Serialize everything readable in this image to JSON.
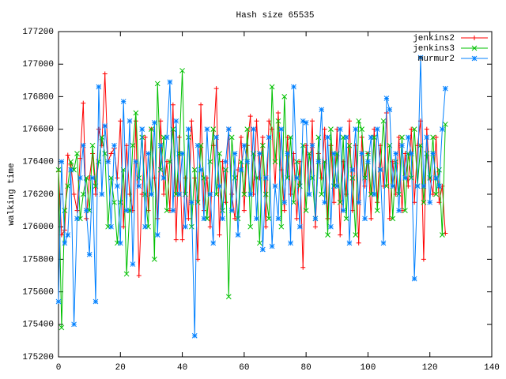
{
  "chart_data": {
    "type": "line",
    "title": "Hash size 65535",
    "y_label": "walking time",
    "x": [
      0,
      1,
      2,
      3,
      4,
      5,
      6,
      7,
      8,
      9,
      10,
      11,
      12,
      13,
      14,
      15,
      16,
      17,
      18,
      19,
      20,
      21,
      22,
      23,
      24,
      25,
      26,
      27,
      28,
      29,
      30,
      31,
      32,
      33,
      34,
      35,
      36,
      37,
      38,
      39,
      40,
      41,
      42,
      43,
      44,
      45,
      46,
      47,
      48,
      49,
      50,
      51,
      52,
      53,
      54,
      55,
      56,
      57,
      58,
      59,
      60,
      61,
      62,
      63,
      64,
      65,
      66,
      67,
      68,
      69,
      70,
      71,
      72,
      73,
      74,
      75,
      76,
      77,
      78,
      79,
      80,
      81,
      82,
      83,
      84,
      85,
      86,
      87,
      88,
      89,
      90,
      91,
      92,
      93,
      94,
      95,
      96,
      97,
      98,
      99,
      100,
      101,
      102,
      103,
      104,
      105,
      106,
      107,
      108,
      109,
      110,
      111,
      112,
      113,
      114,
      115,
      116,
      117,
      118,
      119,
      120,
      121,
      122,
      123,
      124,
      125
    ],
    "series": [
      {
        "name": "jenkins2",
        "color": "#ff0000",
        "marker": "plus",
        "values": [
          176340,
          175950,
          175980,
          176440,
          176380,
          176200,
          176100,
          176420,
          176760,
          176050,
          176300,
          176450,
          176200,
          176600,
          176500,
          176940,
          176400,
          176450,
          176480,
          176300,
          176650,
          176000,
          176500,
          176200,
          176100,
          176650,
          175700,
          176200,
          176550,
          176100,
          176600,
          176300,
          176050,
          176650,
          176200,
          176400,
          176100,
          176750,
          175920,
          176550,
          175920,
          176300,
          176050,
          176650,
          176300,
          175800,
          176750,
          176100,
          176300,
          176000,
          176500,
          176850,
          175950,
          176400,
          176150,
          176600,
          176200,
          176050,
          176350,
          176550,
          176100,
          176500,
          176680,
          176200,
          176650,
          176300,
          176550,
          176000,
          176650,
          176600,
          176250,
          176700,
          176350,
          176100,
          176550,
          176200,
          176450,
          176050,
          176400,
          175750,
          176500,
          176200,
          176650,
          176000,
          176450,
          176300,
          176600,
          176050,
          176500,
          176150,
          176600,
          175950,
          176400,
          176200,
          176650,
          176100,
          176500,
          175900,
          176550,
          176250,
          176450,
          176050,
          176600,
          176150,
          176500,
          176250,
          176700,
          176050,
          176400,
          176200,
          176550,
          176100,
          176450,
          176250,
          176600,
          176150,
          176500,
          176650,
          175800,
          176600,
          176300,
          176200,
          176550,
          176150,
          176250,
          175960
        ]
      },
      {
        "name": "jenkins3",
        "color": "#00c000",
        "marker": "cross",
        "values": [
          176350,
          175380,
          176100,
          176250,
          176400,
          176350,
          176450,
          176050,
          176200,
          176300,
          176100,
          176500,
          176250,
          176400,
          176550,
          176450,
          176000,
          176300,
          176150,
          175900,
          176150,
          176350,
          175710,
          176100,
          176500,
          176700,
          176300,
          176550,
          176200,
          176000,
          176600,
          175800,
          176880,
          176350,
          176550,
          176100,
          176400,
          176600,
          176200,
          176450,
          176960,
          176200,
          176550,
          176000,
          176350,
          176150,
          176500,
          176300,
          176050,
          176400,
          176600,
          176200,
          176450,
          176100,
          176350,
          175570,
          176550,
          176300,
          176050,
          176400,
          176200,
          176600,
          176000,
          176450,
          176300,
          175900,
          176500,
          176200,
          176050,
          176860,
          176400,
          176650,
          176000,
          176800,
          176300,
          176550,
          176150,
          176400,
          176250,
          176500,
          176100,
          176450,
          176300,
          176050,
          176550,
          176200,
          176400,
          175950,
          176600,
          176250,
          176450,
          176150,
          176550,
          176050,
          176500,
          176300,
          175950,
          176650,
          176600,
          176300,
          176450,
          176200,
          176550,
          176100,
          176350,
          176650,
          176250,
          176500,
          176050,
          176400,
          176200,
          176550,
          176100,
          176450,
          176300,
          176600,
          176250,
          176500,
          176150,
          176450,
          176300,
          176550,
          176200,
          176350,
          175950,
          176630
        ]
      },
      {
        "name": "murmur2",
        "color": "#0080ff",
        "marker": "star",
        "values": [
          175540,
          176400,
          175900,
          175950,
          176350,
          175400,
          176050,
          176300,
          176500,
          176100,
          175830,
          176300,
          175540,
          176860,
          176200,
          176620,
          176400,
          176000,
          176500,
          176250,
          175900,
          176770,
          176100,
          176650,
          175770,
          176400,
          176250,
          176600,
          176000,
          176450,
          176200,
          176640,
          175950,
          176500,
          176300,
          176550,
          176890,
          176100,
          176650,
          176200,
          176450,
          176000,
          176600,
          176150,
          175330,
          176500,
          176350,
          176050,
          176600,
          176200,
          175900,
          176550,
          176250,
          176050,
          176400,
          176600,
          176100,
          176450,
          175950,
          176350,
          176500,
          176400,
          176200,
          176600,
          176050,
          176450,
          175860,
          176300,
          176550,
          175880,
          176250,
          176050,
          176600,
          176150,
          176450,
          175900,
          176860,
          176300,
          176000,
          176650,
          176640,
          176200,
          176500,
          176050,
          176400,
          176720,
          176150,
          176550,
          176000,
          176450,
          176250,
          176600,
          176100,
          176550,
          175900,
          176350,
          176600,
          176150,
          176450,
          176050,
          176400,
          176550,
          176200,
          176600,
          176350,
          175900,
          176790,
          176720,
          176250,
          176450,
          176100,
          176500,
          176300,
          176550,
          176450,
          175680,
          176250,
          177040,
          176250,
          176550,
          176150,
          176450,
          176300,
          176250,
          176600,
          176850
        ]
      }
    ],
    "xlim": [
      0,
      140
    ],
    "xticks": [
      0,
      20,
      40,
      60,
      80,
      100,
      120,
      140
    ],
    "ylim": [
      175200,
      177200
    ],
    "yticks": [
      175200,
      175400,
      175600,
      175800,
      176000,
      176200,
      176400,
      176600,
      176800,
      177000,
      177200
    ],
    "grid": false,
    "legend": "top-right"
  }
}
